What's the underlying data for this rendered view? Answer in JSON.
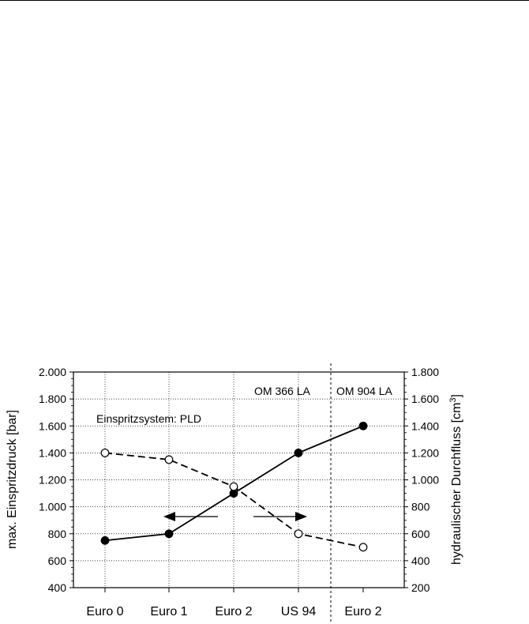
{
  "chart_data": {
    "type": "line",
    "categories": [
      "Euro 0",
      "Euro 1",
      "Euro 2",
      "US 94",
      "Euro 2"
    ],
    "y_left": {
      "label": "max. Einspritzdruck [bar]",
      "ylim": [
        400,
        2000
      ],
      "ticks": [
        400,
        600,
        800,
        1000,
        1200,
        1400,
        1600,
        1800,
        2000
      ],
      "tick_labels": [
        "400",
        "600",
        "800",
        "1.000",
        "1.200",
        "1.400",
        "1.600",
        "1.800",
        "2.000"
      ]
    },
    "y_right": {
      "label_main": "hydraulischer Durchfluss [cm",
      "label_sup": "3",
      "label_end": "]",
      "ylim": [
        200,
        1800
      ],
      "ticks": [
        200,
        400,
        600,
        800,
        1000,
        1200,
        1400,
        1600,
        1800
      ],
      "tick_labels": [
        "200",
        "400",
        "600",
        "800",
        "1.000",
        "1.200",
        "1.400",
        "1.600",
        "1.800"
      ]
    },
    "series": [
      {
        "axis": "left",
        "style": "solid",
        "marker": "filled",
        "values": [
          750,
          800,
          1100,
          1400,
          1600
        ]
      },
      {
        "axis": "right",
        "style": "dashed",
        "marker": "open",
        "values": [
          1200,
          1150,
          950,
          600,
          500
        ]
      }
    ],
    "annotations": {
      "system": "Einspritzsystem: PLD",
      "engine_a": "OM 366 LA",
      "engine_b": "OM 904 LA"
    },
    "grid": true
  }
}
